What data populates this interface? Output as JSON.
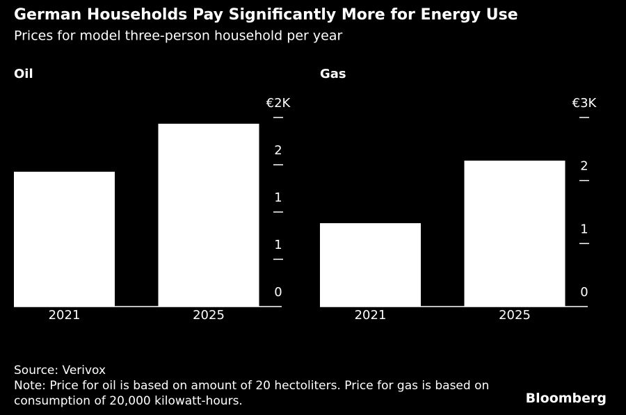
{
  "title": "German Households Pay Significantly More for Energy Use",
  "subtitle": "Prices for model three-person household per year",
  "chart_data": [
    {
      "type": "bar",
      "title": "Oil",
      "categories": [
        "2021",
        "2025"
      ],
      "values": [
        1426,
        1934
      ],
      "color": "#ffffff",
      "ylim": [
        0,
        2000
      ],
      "yticks": [
        0,
        {
          "value": 500,
          "label": "1"
        },
        {
          "value": 1000,
          "label": "1"
        },
        {
          "value": 1500,
          "label": "2"
        },
        {
          "value": 2000,
          "label": "€2K"
        }
      ]
    },
    {
      "type": "bar",
      "title": "Gas",
      "categories": [
        "2021",
        "2025"
      ],
      "values": [
        1323,
        2315
      ],
      "color": "#ffffff",
      "ylim": [
        0,
        3000
      ],
      "yticks": [
        0,
        {
          "value": 1000,
          "label": "1"
        },
        {
          "value": 2000,
          "label": "2"
        },
        {
          "value": 3000,
          "label": "€3K"
        }
      ]
    }
  ],
  "source": "Source: Verivox",
  "note": "Note: Price for oil is based on amount of 20 hectoliters. Price for gas is based on consumption of 20,000 kilowatt-hours.",
  "logo": "Bloomberg"
}
